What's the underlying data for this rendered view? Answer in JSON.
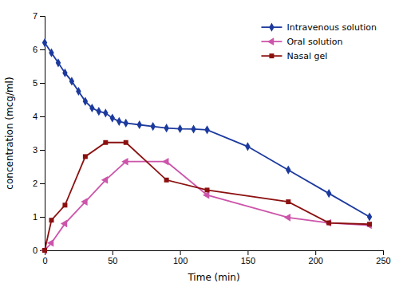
{
  "chart_data": {
    "type": "line",
    "xlabel": "Time (min)",
    "ylabel": "concentration (mcg/ml)",
    "xlim": [
      0,
      250
    ],
    "ylim": [
      0,
      7
    ],
    "xticks": [
      0,
      50,
      100,
      150,
      200,
      250
    ],
    "yticks": [
      0,
      1,
      2,
      3,
      4,
      5,
      6,
      7
    ],
    "grid": false,
    "legend": "upper right",
    "series": [
      {
        "name": "Intravenous solution",
        "color": "#1c3a9e",
        "marker": "diamond",
        "line_style": "solid",
        "x": [
          0,
          5,
          10,
          15,
          20,
          25,
          30,
          35,
          40,
          45,
          50,
          55,
          60,
          70,
          80,
          90,
          100,
          110,
          120,
          150,
          180,
          210,
          240
        ],
        "values": [
          6.2,
          5.9,
          5.6,
          5.3,
          5.05,
          4.75,
          4.45,
          4.25,
          4.15,
          4.1,
          3.95,
          3.85,
          3.8,
          3.75,
          3.7,
          3.65,
          3.63,
          3.62,
          3.6,
          3.1,
          2.4,
          1.7,
          1.0
        ]
      },
      {
        "name": "Oral solution",
        "color": "#cc55aa",
        "marker": "triangle-left",
        "line_style": "solid",
        "x": [
          0,
          5,
          15,
          30,
          45,
          60,
          90,
          120,
          180,
          210,
          240
        ],
        "values": [
          0.0,
          0.22,
          0.8,
          1.45,
          2.1,
          2.65,
          2.65,
          1.65,
          0.98,
          0.82,
          0.75
        ]
      },
      {
        "name": "Nasal gel",
        "color": "#8b1010",
        "marker": "square",
        "line_style": "solid",
        "x": [
          0,
          5,
          15,
          30,
          45,
          60,
          90,
          120,
          180,
          210,
          240
        ],
        "values": [
          0.0,
          0.9,
          1.35,
          2.8,
          3.22,
          3.22,
          2.1,
          1.8,
          1.45,
          0.82,
          0.78
        ]
      }
    ]
  }
}
